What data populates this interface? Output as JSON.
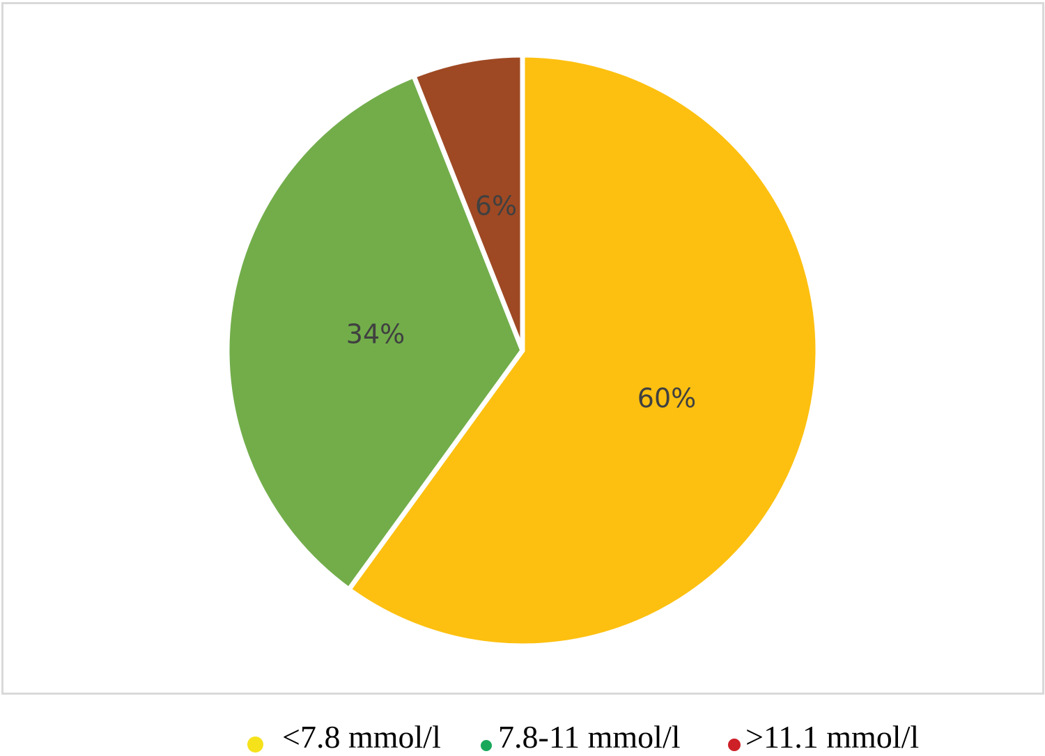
{
  "chart_data": {
    "type": "pie",
    "slices": [
      {
        "label": "<7.8 mmol/l",
        "value": 60,
        "value_label": "60%",
        "color": "#fdc010"
      },
      {
        "label": "7.8-11 mmol/l",
        "value": 34,
        "value_label": "34%",
        "color": "#72ad4a"
      },
      {
        "label": ">11.1 mmol/l",
        "value": 6,
        "value_label": "6%",
        "color": "#9e4924"
      }
    ],
    "legend": {
      "placement": "bottom",
      "swatch_colors": [
        "#f5e21b",
        "#19a85a",
        "#cd2027"
      ]
    },
    "start_angle": "12-o'clock",
    "direction": "clockwise"
  }
}
